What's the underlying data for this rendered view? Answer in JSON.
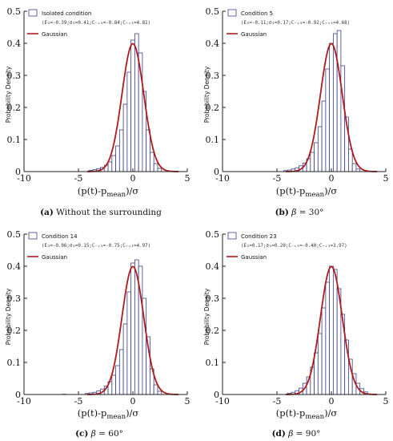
{
  "chart_data": [
    {
      "type": "bar",
      "panel": "a",
      "legend": {
        "bars_label": "Isolated condition",
        "stats": "(E₃=-0.39;σ₃=0.41;C₋ᵥ₃=-0.84;C₊ᵥ₃=4.81)",
        "line_label": "Gaussian"
      },
      "ylabel": "Probability Density",
      "xlabel_main": "(p(t)-p",
      "xlabel_sub": "mean",
      "xlabel_tail": ")/σ",
      "xlim": [
        -10,
        5
      ],
      "ylim": [
        0,
        0.5
      ],
      "xticks": [
        "-10",
        "-5",
        "0",
        "5"
      ],
      "yticks": [
        "0",
        "0.1",
        "0.2",
        "0.3",
        "0.4",
        "0.5"
      ],
      "bin_width": 0.35,
      "bins": [
        {
          "x": -3.85,
          "y": 0.004
        },
        {
          "x": -3.5,
          "y": 0.006
        },
        {
          "x": -3.15,
          "y": 0.009
        },
        {
          "x": -2.8,
          "y": 0.013
        },
        {
          "x": -2.45,
          "y": 0.02
        },
        {
          "x": -2.1,
          "y": 0.03
        },
        {
          "x": -1.75,
          "y": 0.05
        },
        {
          "x": -1.4,
          "y": 0.08
        },
        {
          "x": -1.05,
          "y": 0.13
        },
        {
          "x": -0.7,
          "y": 0.21
        },
        {
          "x": -0.35,
          "y": 0.31
        },
        {
          "x": 0.0,
          "y": 0.41
        },
        {
          "x": 0.35,
          "y": 0.43
        },
        {
          "x": 0.7,
          "y": 0.37
        },
        {
          "x": 1.05,
          "y": 0.25
        },
        {
          "x": 1.4,
          "y": 0.13
        },
        {
          "x": 1.75,
          "y": 0.06
        },
        {
          "x": 2.1,
          "y": 0.025
        },
        {
          "x": 2.45,
          "y": 0.01
        }
      ],
      "gaussian": {
        "mean": 0.0,
        "sigma": 1.0
      },
      "caption_letter": "(a)",
      "caption_text": " Without the surrounding",
      "caption_beta": "",
      "caption_value": ""
    },
    {
      "type": "bar",
      "panel": "b",
      "legend": {
        "bars_label": "Condition 5",
        "stats": "(E₃=-0.11;σ₃=0.17;C₋ᵥ₃=-0.92;C₊ᵥ₃=4.68)",
        "line_label": "Gaussian"
      },
      "ylabel": "Probability Density",
      "xlabel_main": "(p(t)-p",
      "xlabel_sub": "mean",
      "xlabel_tail": ")/σ",
      "xlim": [
        -10,
        5
      ],
      "ylim": [
        0,
        0.5
      ],
      "xticks": [
        "-10",
        "-5",
        "0",
        "5"
      ],
      "yticks": [
        "0",
        "0.1",
        "0.2",
        "0.3",
        "0.4",
        "0.5"
      ],
      "bin_width": 0.35,
      "bins": [
        {
          "x": -4.2,
          "y": 0.003
        },
        {
          "x": -3.85,
          "y": 0.005
        },
        {
          "x": -3.5,
          "y": 0.008
        },
        {
          "x": -3.15,
          "y": 0.012
        },
        {
          "x": -2.8,
          "y": 0.018
        },
        {
          "x": -2.45,
          "y": 0.027
        },
        {
          "x": -2.1,
          "y": 0.04
        },
        {
          "x": -1.75,
          "y": 0.06
        },
        {
          "x": -1.4,
          "y": 0.09
        },
        {
          "x": -1.05,
          "y": 0.14
        },
        {
          "x": -0.7,
          "y": 0.22
        },
        {
          "x": -0.35,
          "y": 0.32
        },
        {
          "x": 0.0,
          "y": 0.4
        },
        {
          "x": 0.35,
          "y": 0.43
        },
        {
          "x": 0.7,
          "y": 0.44
        },
        {
          "x": 1.05,
          "y": 0.33
        },
        {
          "x": 1.4,
          "y": 0.17
        },
        {
          "x": 1.75,
          "y": 0.07
        },
        {
          "x": 2.1,
          "y": 0.025
        },
        {
          "x": 2.45,
          "y": 0.008
        }
      ],
      "gaussian": {
        "mean": 0.0,
        "sigma": 1.0
      },
      "caption_letter": "(b)",
      "caption_text": " ",
      "caption_beta": "β",
      "caption_value": " = 30°"
    },
    {
      "type": "bar",
      "panel": "c",
      "legend": {
        "bars_label": "Condition 14",
        "stats": "(E₃=-0.06;σ₃=0.15;C₋ᵥ₃=-0.75;C₊ᵥ₃=4.97)",
        "line_label": "Gaussian"
      },
      "ylabel": "Probability Density",
      "xlabel_main": "(p(t)-p",
      "xlabel_sub": "mean",
      "xlabel_tail": ")/σ",
      "xlim": [
        -10,
        5
      ],
      "ylim": [
        0,
        0.5
      ],
      "xticks": [
        "-10",
        "-5",
        "0",
        "5"
      ],
      "yticks": [
        "0",
        "0.1",
        "0.2",
        "0.3",
        "0.4",
        "0.5"
      ],
      "bin_width": 0.35,
      "bins": [
        {
          "x": -6.3,
          "y": 0.001
        },
        {
          "x": -4.2,
          "y": 0.003
        },
        {
          "x": -3.85,
          "y": 0.005
        },
        {
          "x": -3.5,
          "y": 0.007
        },
        {
          "x": -3.15,
          "y": 0.011
        },
        {
          "x": -2.8,
          "y": 0.017
        },
        {
          "x": -2.45,
          "y": 0.026
        },
        {
          "x": -2.1,
          "y": 0.04
        },
        {
          "x": -1.75,
          "y": 0.06
        },
        {
          "x": -1.4,
          "y": 0.09
        },
        {
          "x": -1.05,
          "y": 0.14
        },
        {
          "x": -0.7,
          "y": 0.22
        },
        {
          "x": -0.35,
          "y": 0.32
        },
        {
          "x": 0.0,
          "y": 0.41
        },
        {
          "x": 0.35,
          "y": 0.42
        },
        {
          "x": 0.7,
          "y": 0.4
        },
        {
          "x": 1.05,
          "y": 0.3
        },
        {
          "x": 1.4,
          "y": 0.18
        },
        {
          "x": 1.75,
          "y": 0.08
        },
        {
          "x": 2.1,
          "y": 0.03
        },
        {
          "x": 2.45,
          "y": 0.01
        }
      ],
      "gaussian": {
        "mean": 0.0,
        "sigma": 1.0
      },
      "caption_letter": "(c)",
      "caption_text": " ",
      "caption_beta": "β",
      "caption_value": " = 60°"
    },
    {
      "type": "bar",
      "panel": "d",
      "legend": {
        "bars_label": "Condition 23",
        "stats": "(E₃=0.17;σ₃=0.20;C₋ᵥ₃=-0.40;C₊ᵥ₃=3.97)",
        "line_label": "Gaussian"
      },
      "ylabel": "Probability Density",
      "xlabel_main": "(p(t)-p",
      "xlabel_sub": "mean",
      "xlabel_tail": ")/σ",
      "xlim": [
        -10,
        5
      ],
      "ylim": [
        0,
        0.5
      ],
      "xticks": [
        "-10",
        "-5",
        "0",
        "5"
      ],
      "yticks": [
        "0",
        "0.1",
        "0.2",
        "0.3",
        "0.4",
        "0.5"
      ],
      "bin_width": 0.35,
      "bins": [
        {
          "x": -3.85,
          "y": 0.004
        },
        {
          "x": -3.5,
          "y": 0.007
        },
        {
          "x": -3.15,
          "y": 0.012
        },
        {
          "x": -2.8,
          "y": 0.02
        },
        {
          "x": -2.45,
          "y": 0.035
        },
        {
          "x": -2.1,
          "y": 0.055
        },
        {
          "x": -1.75,
          "y": 0.085
        },
        {
          "x": -1.4,
          "y": 0.13
        },
        {
          "x": -1.05,
          "y": 0.19
        },
        {
          "x": -0.7,
          "y": 0.27
        },
        {
          "x": -0.35,
          "y": 0.35
        },
        {
          "x": 0.0,
          "y": 0.4
        },
        {
          "x": 0.35,
          "y": 0.39
        },
        {
          "x": 0.7,
          "y": 0.33
        },
        {
          "x": 1.05,
          "y": 0.25
        },
        {
          "x": 1.4,
          "y": 0.17
        },
        {
          "x": 1.75,
          "y": 0.11
        },
        {
          "x": 2.1,
          "y": 0.065
        },
        {
          "x": 2.45,
          "y": 0.035
        },
        {
          "x": 2.8,
          "y": 0.018
        },
        {
          "x": 3.15,
          "y": 0.008
        }
      ],
      "gaussian": {
        "mean": 0.0,
        "sigma": 1.0
      },
      "caption_letter": "(d)",
      "caption_text": " ",
      "caption_beta": "β",
      "caption_value": " = 90°"
    }
  ]
}
